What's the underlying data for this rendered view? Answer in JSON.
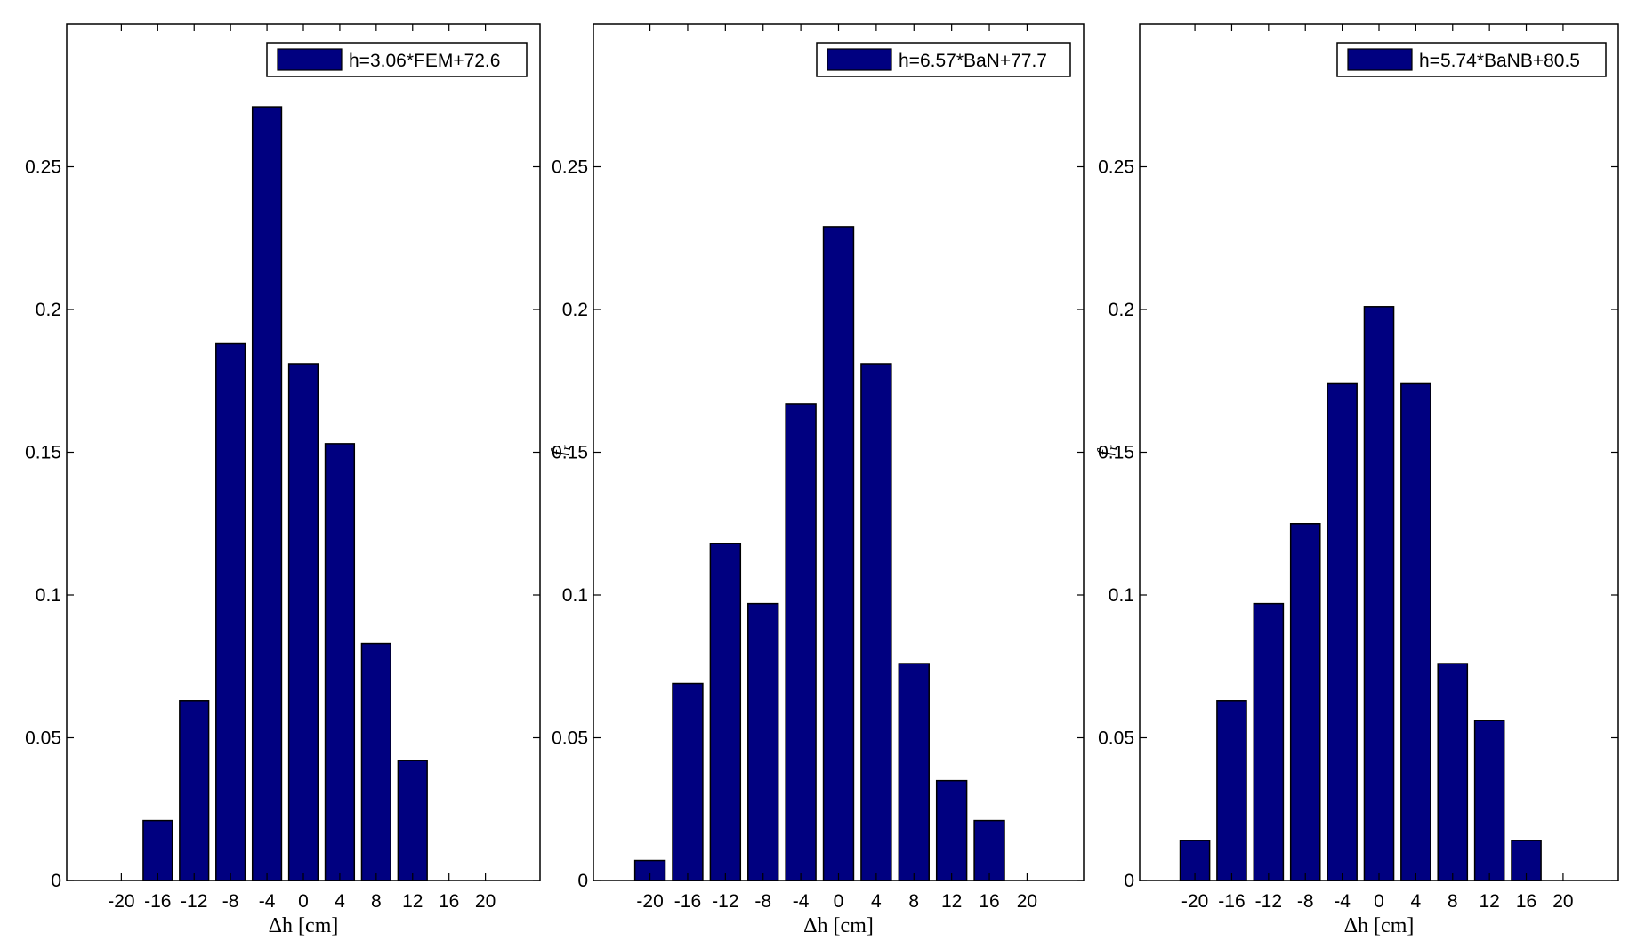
{
  "chart_data": [
    {
      "type": "bar",
      "categories": [
        -20,
        -16,
        -12,
        -8,
        -4,
        0,
        4,
        8,
        12,
        16,
        20
      ],
      "series": [
        {
          "name": "h=3.06*FEM+72.6",
          "values": [
            0,
            0.021,
            0.063,
            0.188,
            0.271,
            0.181,
            0.153,
            0.083,
            0.042,
            0,
            0
          ]
        }
      ],
      "xlabel": "Δh [cm]",
      "ylabel": "",
      "xlim": [
        -26,
        26
      ],
      "ylim": [
        0,
        0.3
      ],
      "xticks": [
        "-20",
        "-16",
        "-12",
        "-8",
        "-4",
        "0",
        "4",
        "8",
        "12",
        "16",
        "20"
      ],
      "yticks": [
        "0",
        "0.05",
        "0.1",
        "0.15",
        "0.2",
        "0.25"
      ],
      "grid": false,
      "legend": "top-right",
      "color": "#000080"
    },
    {
      "type": "bar",
      "categories": [
        -20,
        -16,
        -12,
        -8,
        -4,
        0,
        4,
        8,
        12,
        16,
        20
      ],
      "series": [
        {
          "name": "h=6.57*BaN+77.7",
          "values": [
            0.007,
            0.069,
            0.118,
            0.097,
            0.167,
            0.229,
            0.181,
            0.076,
            0.035,
            0.021,
            0
          ]
        }
      ],
      "xlabel": "Δh [cm]",
      "ylabel": "f_r",
      "xlim": [
        -26,
        26
      ],
      "ylim": [
        0,
        0.3
      ],
      "xticks": [
        "-20",
        "-16",
        "-12",
        "-8",
        "-4",
        "0",
        "4",
        "8",
        "12",
        "16",
        "20"
      ],
      "yticks": [
        "0",
        "0.05",
        "0.1",
        "0.15",
        "0.2",
        "0.25"
      ],
      "grid": false,
      "legend": "top-right",
      "color": "#000080"
    },
    {
      "type": "bar",
      "categories": [
        -20,
        -16,
        -12,
        -8,
        -4,
        0,
        4,
        8,
        12,
        16,
        20
      ],
      "series": [
        {
          "name": "h=5.74*BaNB+80.5",
          "values": [
            0.014,
            0.063,
            0.097,
            0.125,
            0.174,
            0.201,
            0.174,
            0.076,
            0.056,
            0.014,
            0
          ]
        }
      ],
      "xlabel": "Δh [cm]",
      "ylabel": "f_r",
      "xlim": [
        -26,
        26
      ],
      "ylim": [
        0,
        0.3
      ],
      "xticks": [
        "-20",
        "-16",
        "-12",
        "-8",
        "-4",
        "0",
        "4",
        "8",
        "12",
        "16",
        "20"
      ],
      "yticks": [
        "0",
        "0.05",
        "0.1",
        "0.15",
        "0.2",
        "0.25"
      ],
      "grid": false,
      "legend": "top-right",
      "color": "#000080"
    }
  ]
}
